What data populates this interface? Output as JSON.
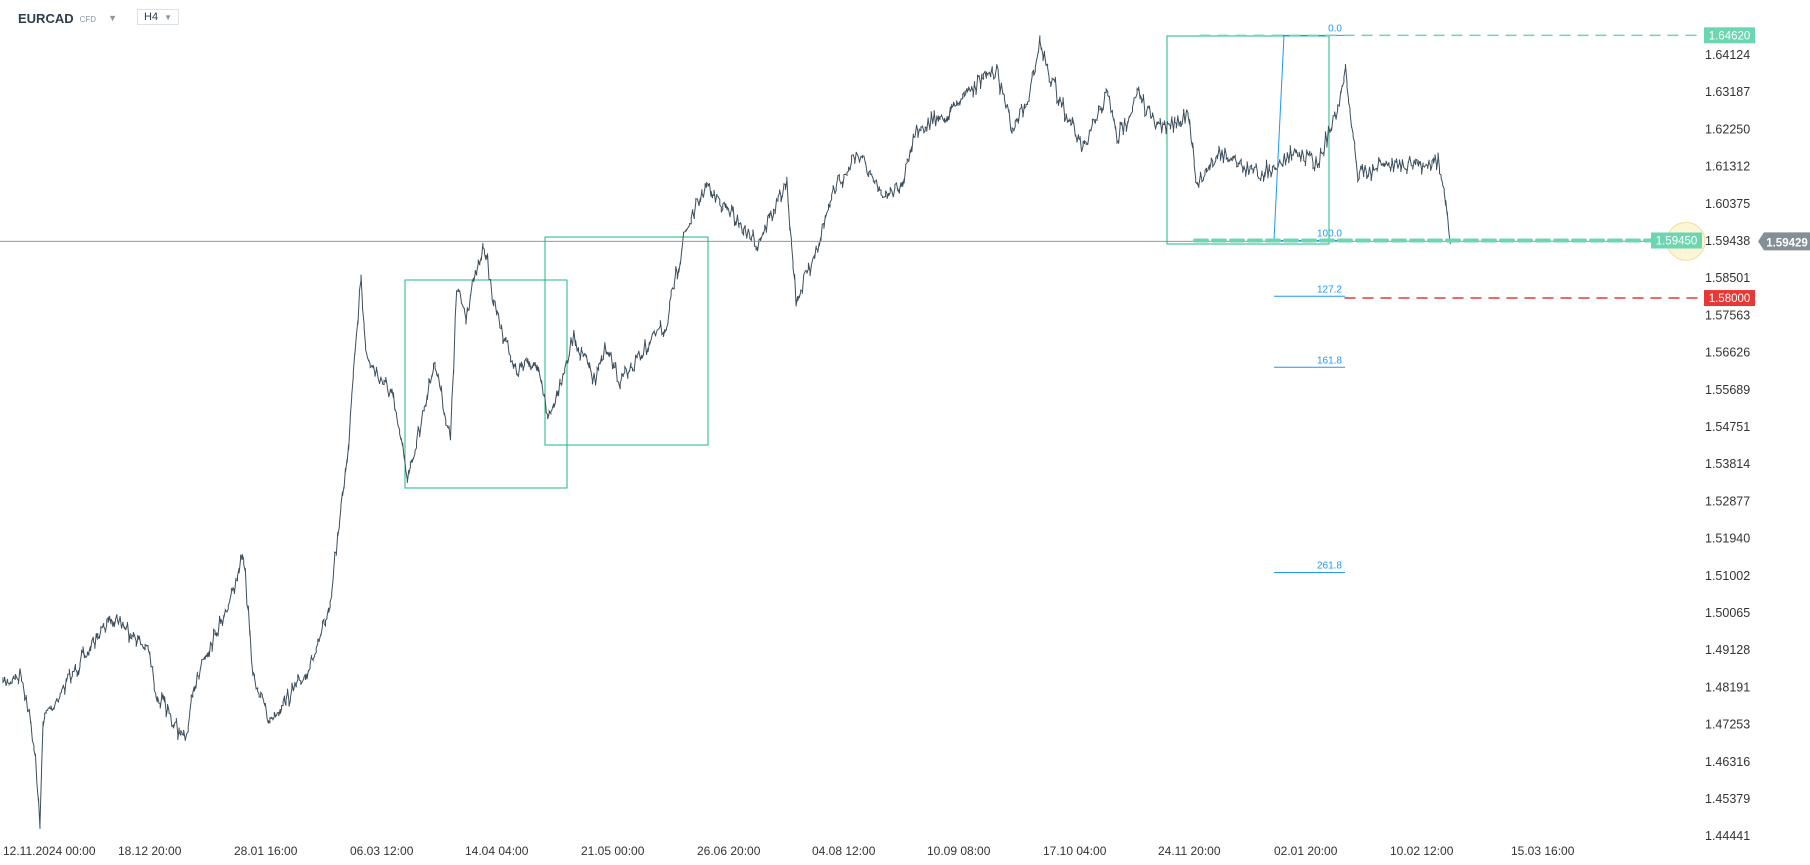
{
  "header": {
    "symbol": "EURCAD",
    "instrument_type": "CFD",
    "timeframe": "H4"
  },
  "colors": {
    "candles": "#3d4f5c",
    "box": "#1eb980",
    "fib": "#2196f3",
    "target_green": "#6bd6b0",
    "stop_red": "#e53935",
    "current_price_bg": "#858f96",
    "highlight_circle": "#fbf3cc"
  },
  "chart_data": {
    "type": "line",
    "title": "",
    "y_ticks": [
      "1.64124",
      "1.63187",
      "1.62250",
      "1.61312",
      "1.60375",
      "1.59438",
      "1.58501",
      "1.57563",
      "1.56626",
      "1.55689",
      "1.54751",
      "1.53814",
      "1.52877",
      "1.51940",
      "1.51002",
      "1.50065",
      "1.49128",
      "1.48191",
      "1.47253",
      "1.46316",
      "1.45379",
      "1.44441"
    ],
    "x_ticks": [
      "12.11.2024  00:00",
      "18.12  20:00",
      "28.01  16:00",
      "06.03  12:00",
      "14.04  04:00",
      "21.05  00:00",
      "26.06  20:00",
      "04.08  12:00",
      "10.09  08:00",
      "17.10  04:00",
      "24.11  20:00",
      "02.01  20:00",
      "10.02  12:00",
      "15.03  16:00"
    ],
    "ylim": [
      1.44441,
      1.6462
    ],
    "grid": false,
    "series": [
      {
        "points": [
          [
            "2024-11-12",
            1.4827
          ],
          [
            "2024-11-18",
            1.4856
          ],
          [
            "2024-11-22",
            1.4681
          ],
          [
            "2024-11-24",
            1.4477
          ],
          [
            "2024-11-25",
            1.4739
          ],
          [
            "2024-11-30",
            1.4798
          ],
          [
            "2024-12-06",
            1.4871
          ],
          [
            "2024-12-18",
            1.5002
          ],
          [
            "2024-12-29",
            1.4914
          ],
          [
            "2025-01-01",
            1.4798
          ],
          [
            "2025-01-10",
            1.4681
          ],
          [
            "2025-01-14",
            1.4856
          ],
          [
            "2025-01-24",
            1.5031
          ],
          [
            "2025-01-29",
            1.5148
          ],
          [
            "2025-02-01",
            1.4856
          ],
          [
            "2025-02-06",
            1.4739
          ],
          [
            "2025-02-16",
            1.4827
          ],
          [
            "2025-02-22",
            1.4914
          ],
          [
            "2025-02-26",
            1.5031
          ],
          [
            "2025-03-01",
            1.5236
          ],
          [
            "2025-03-04",
            1.544
          ],
          [
            "2025-03-06",
            1.5674
          ],
          [
            "2025-03-08",
            1.5834
          ],
          [
            "2025-03-10",
            1.5645
          ],
          [
            "2025-03-18",
            1.5557
          ],
          [
            "2025-03-23",
            1.5352
          ],
          [
            "2025-03-26",
            1.544
          ],
          [
            "2025-04-01",
            1.5645
          ],
          [
            "2025-04-06",
            1.544
          ],
          [
            "2025-04-08",
            1.582
          ],
          [
            "2025-04-11",
            1.5761
          ],
          [
            "2025-04-17",
            1.5936
          ],
          [
            "2025-04-20",
            1.579
          ],
          [
            "2025-04-27",
            1.5615
          ],
          [
            "2025-05-03",
            1.5645
          ],
          [
            "2025-05-08",
            1.5498
          ],
          [
            "2025-05-16",
            1.5703
          ],
          [
            "2025-05-23",
            1.5586
          ],
          [
            "2025-05-26",
            1.5674
          ],
          [
            "2025-05-31",
            1.5586
          ],
          [
            "2025-06-08",
            1.5674
          ],
          [
            "2025-06-15",
            1.5732
          ],
          [
            "2025-06-21",
            1.5966
          ],
          [
            "2025-06-28",
            1.6083
          ],
          [
            "2025-07-08",
            1.5995
          ],
          [
            "2025-07-14",
            1.5936
          ],
          [
            "2025-07-24",
            1.6083
          ],
          [
            "2025-07-27",
            1.579
          ],
          [
            "2025-08-03",
            1.5936
          ],
          [
            "2025-08-09",
            1.6083
          ],
          [
            "2025-08-16",
            1.617
          ],
          [
            "2025-08-24",
            1.6053
          ],
          [
            "2025-08-30",
            1.6083
          ],
          [
            "2025-09-04",
            1.6228
          ],
          [
            "2025-09-14",
            1.6258
          ],
          [
            "2025-09-19",
            1.6316
          ],
          [
            "2025-09-30",
            1.6374
          ],
          [
            "2025-10-05",
            1.6228
          ],
          [
            "2025-10-10",
            1.6287
          ],
          [
            "2025-10-14",
            1.6447
          ],
          [
            "2025-10-18",
            1.6345
          ],
          [
            "2025-10-23",
            1.6258
          ],
          [
            "2025-10-28",
            1.617
          ],
          [
            "2025-11-05",
            1.6316
          ],
          [
            "2025-11-08",
            1.6199
          ],
          [
            "2025-11-15",
            1.6316
          ],
          [
            "2025-11-21",
            1.6228
          ],
          [
            "2025-12-01",
            1.6258
          ],
          [
            "2025-12-04",
            1.6083
          ],
          [
            "2025-12-11",
            1.617
          ],
          [
            "2025-12-24",
            1.6112
          ],
          [
            "2026-01-06",
            1.617
          ],
          [
            "2026-01-12",
            1.6141
          ],
          [
            "2026-01-19",
            1.6287
          ],
          [
            "2026-01-21",
            1.6374
          ],
          [
            "2026-01-25",
            1.6112
          ],
          [
            "2026-02-07",
            1.6141
          ],
          [
            "2026-02-20",
            1.6141
          ],
          [
            "2026-02-23",
            1.6024
          ],
          [
            "2026-02-24",
            1.5936
          ]
        ]
      }
    ],
    "fibonacci": {
      "levels": [
        {
          "label": "0.0",
          "price": 1.6462
        },
        {
          "label": "100.0",
          "price": 1.5945
        },
        {
          "label": "127.2",
          "price": 1.58044
        },
        {
          "label": "161.8",
          "price": 1.56255
        },
        {
          "label": "261.8",
          "price": 1.51085
        }
      ]
    },
    "price_tags": [
      {
        "label": "1.64620",
        "price": 1.6462,
        "style": "target"
      },
      {
        "label": "1.59450",
        "price": 1.5945,
        "style": "entry"
      },
      {
        "label": "1.58000",
        "price": 1.58,
        "style": "stop"
      }
    ],
    "current_price": {
      "label": "1.59429",
      "price": 1.59429
    }
  }
}
